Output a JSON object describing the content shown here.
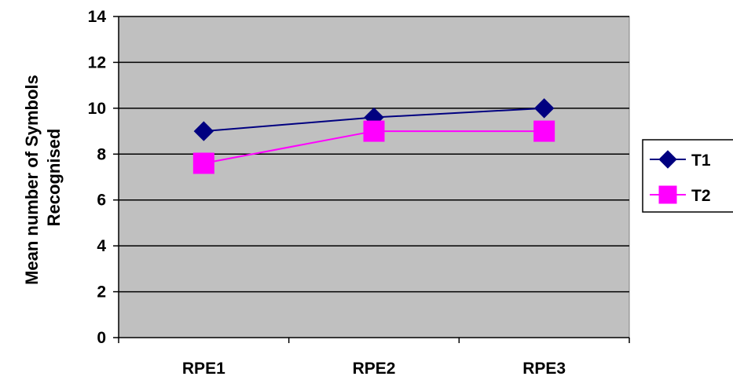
{
  "chart_data": {
    "type": "line",
    "title": "",
    "xlabel": "",
    "ylabel": [
      "Mean number of Symbols",
      "Recognised"
    ],
    "categories": [
      "RPE1",
      "RPE2",
      "RPE3"
    ],
    "ylim": [
      0,
      14
    ],
    "yticks": [
      0,
      2,
      4,
      6,
      8,
      10,
      12,
      14
    ],
    "grid": "horizontal",
    "legend_position": "right",
    "plot_background": "#c0c0c0",
    "series": [
      {
        "name": "T1",
        "values": [
          9,
          9.6,
          10
        ],
        "color": "#000080",
        "marker": "diamond"
      },
      {
        "name": "T2",
        "values": [
          7.6,
          9,
          9
        ],
        "color": "#ff00ff",
        "marker": "square"
      }
    ]
  }
}
